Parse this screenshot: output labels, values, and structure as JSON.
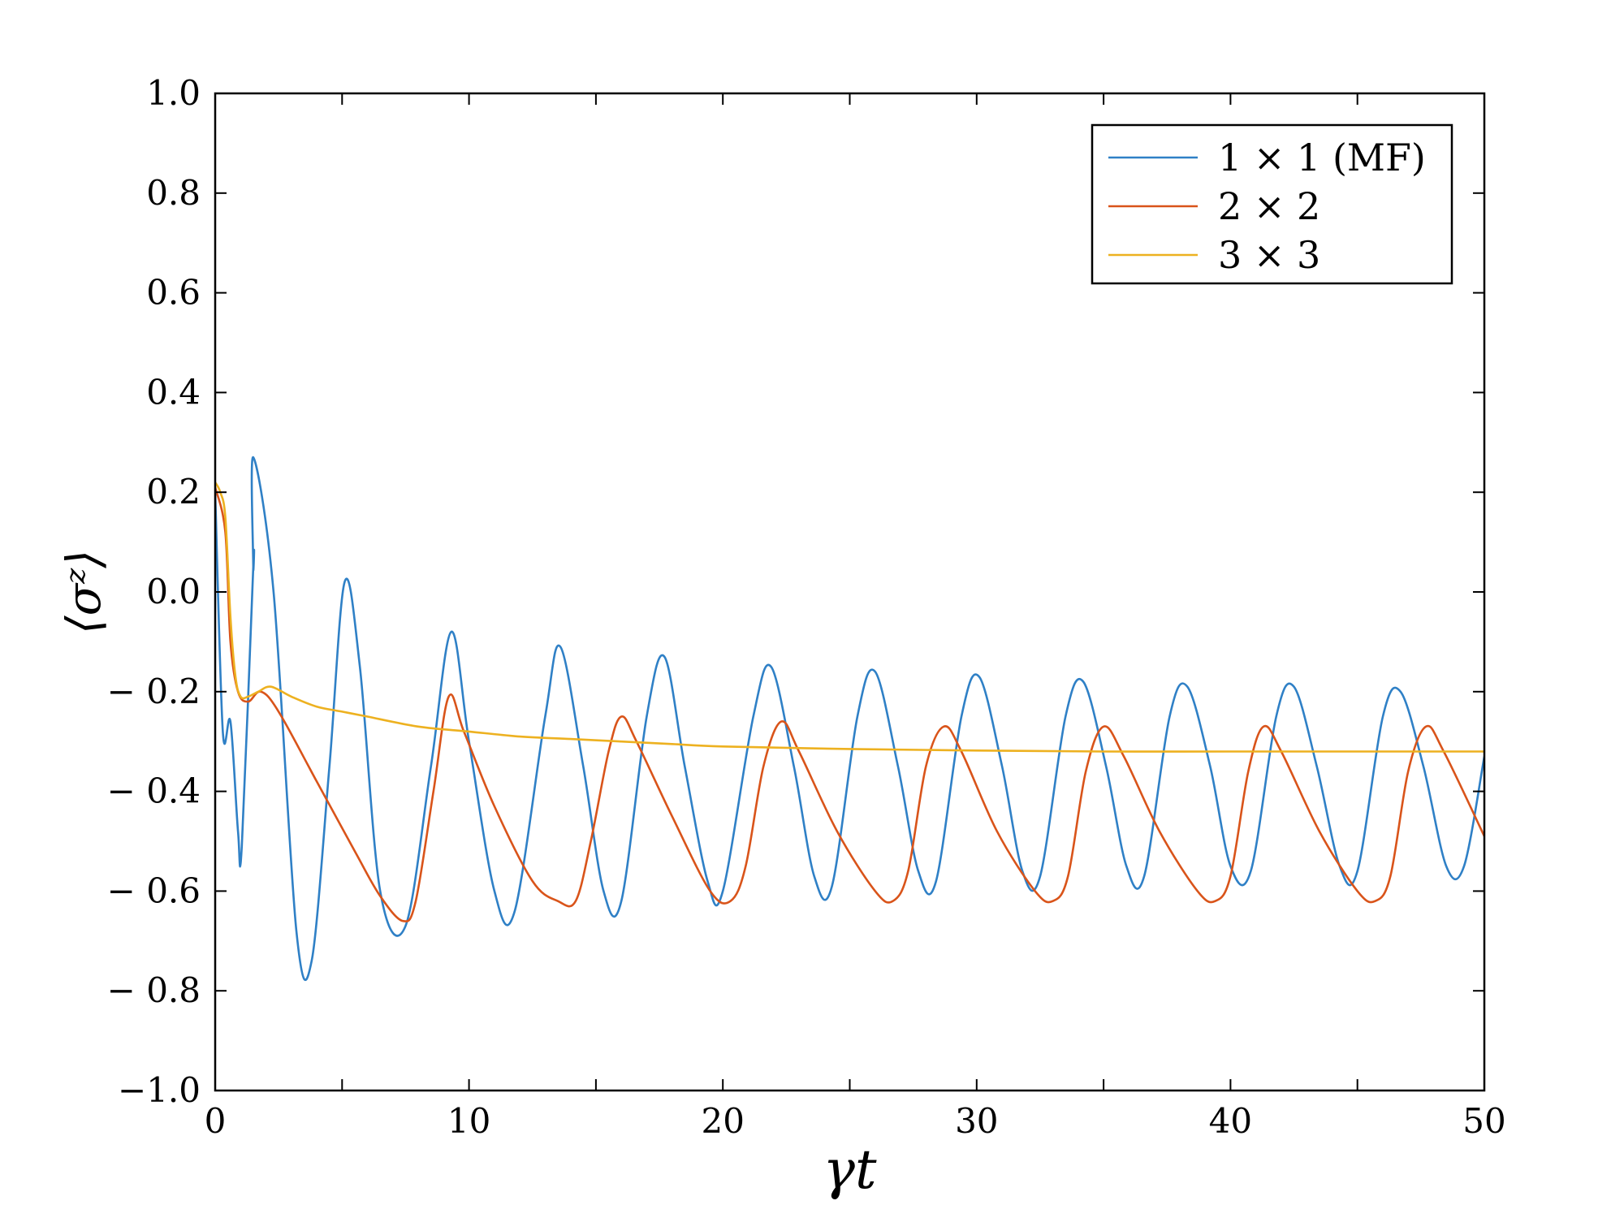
{
  "chart_data": {
    "type": "line",
    "xlabel": "γt",
    "ylabel": "⟨σᶻ⟩",
    "xlim": [
      0,
      50
    ],
    "ylim": [
      -1.0,
      1.0
    ],
    "x_ticks": [
      0,
      10,
      20,
      30,
      40,
      50
    ],
    "x_tick_labels": [
      "0",
      "10",
      "20",
      "30",
      "40",
      "50"
    ],
    "y_ticks": [
      1.0,
      0.8,
      0.6,
      0.4,
      0.2,
      0.0,
      -0.2,
      -0.4,
      -0.6,
      -0.8,
      -1.0
    ],
    "y_tick_labels": [
      "1.0",
      "0.8",
      "0.6",
      "0.4",
      "0.2",
      "0.0",
      "− 0.2",
      "− 0.4",
      "− 0.6",
      "− 0.8",
      "−1.0"
    ],
    "grid": false,
    "legend_position": "top-right",
    "series": [
      {
        "name": "1 × 1 (MF)",
        "color": "#2f80c6",
        "points": [
          [
            0,
            0.2
          ],
          [
            0.3,
            -0.28
          ],
          [
            0.6,
            -0.26
          ],
          [
            0.9,
            -0.48
          ],
          [
            1.05,
            -0.51
          ],
          [
            1.5,
            0.05
          ],
          [
            1.5,
            0.05
          ],
          [
            1.5,
            0.27
          ],
          [
            2.3,
            0.0
          ],
          [
            3.2,
            -0.68
          ],
          [
            3.8,
            -0.74
          ],
          [
            4.5,
            -0.35
          ],
          [
            5.1,
            0.02
          ],
          [
            5.7,
            -0.15
          ],
          [
            6.5,
            -0.6
          ],
          [
            7.5,
            -0.67
          ],
          [
            8.5,
            -0.35
          ],
          [
            9.3,
            -0.08
          ],
          [
            10,
            -0.3
          ],
          [
            11,
            -0.6
          ],
          [
            11.8,
            -0.64
          ],
          [
            13,
            -0.25
          ],
          [
            13.6,
            -0.11
          ],
          [
            14.5,
            -0.35
          ],
          [
            15.3,
            -0.6
          ],
          [
            16,
            -0.62
          ],
          [
            17,
            -0.25
          ],
          [
            17.7,
            -0.13
          ],
          [
            18.5,
            -0.35
          ],
          [
            19.4,
            -0.58
          ],
          [
            20,
            -0.6
          ],
          [
            21.2,
            -0.25
          ],
          [
            21.9,
            -0.15
          ],
          [
            22.8,
            -0.35
          ],
          [
            23.6,
            -0.57
          ],
          [
            24.3,
            -0.59
          ],
          [
            25.3,
            -0.25
          ],
          [
            26,
            -0.16
          ],
          [
            26.9,
            -0.35
          ],
          [
            27.7,
            -0.56
          ],
          [
            28.4,
            -0.58
          ],
          [
            29.4,
            -0.25
          ],
          [
            30.1,
            -0.17
          ],
          [
            31,
            -0.35
          ],
          [
            31.8,
            -0.56
          ],
          [
            32.5,
            -0.57
          ],
          [
            33.5,
            -0.25
          ],
          [
            34.2,
            -0.18
          ],
          [
            35.1,
            -0.35
          ],
          [
            35.9,
            -0.55
          ],
          [
            36.6,
            -0.57
          ],
          [
            37.6,
            -0.25
          ],
          [
            38.3,
            -0.19
          ],
          [
            39.2,
            -0.35
          ],
          [
            40,
            -0.55
          ],
          [
            40.8,
            -0.56
          ],
          [
            41.8,
            -0.25
          ],
          [
            42.5,
            -0.19
          ],
          [
            43.4,
            -0.35
          ],
          [
            44.3,
            -0.55
          ],
          [
            45,
            -0.56
          ],
          [
            46,
            -0.25
          ],
          [
            46.7,
            -0.2
          ],
          [
            47.6,
            -0.35
          ],
          [
            48.5,
            -0.55
          ],
          [
            49.2,
            -0.55
          ],
          [
            50,
            -0.33
          ]
        ]
      },
      {
        "name": "2 × 2",
        "color": "#d9541a",
        "points": [
          [
            0,
            0.21
          ],
          [
            0.4,
            0.12
          ],
          [
            0.6,
            -0.1
          ],
          [
            0.9,
            -0.2
          ],
          [
            1.3,
            -0.22
          ],
          [
            1.8,
            -0.2
          ],
          [
            2.5,
            -0.24
          ],
          [
            4,
            -0.38
          ],
          [
            5.5,
            -0.52
          ],
          [
            6.5,
            -0.61
          ],
          [
            7.4,
            -0.66
          ],
          [
            7.9,
            -0.62
          ],
          [
            8.6,
            -0.4
          ],
          [
            9.2,
            -0.21
          ],
          [
            9.8,
            -0.28
          ],
          [
            11,
            -0.43
          ],
          [
            12.5,
            -0.58
          ],
          [
            13.5,
            -0.62
          ],
          [
            14.2,
            -0.62
          ],
          [
            14.8,
            -0.5
          ],
          [
            15.5,
            -0.32
          ],
          [
            16,
            -0.25
          ],
          [
            16.6,
            -0.3
          ],
          [
            18,
            -0.45
          ],
          [
            19.5,
            -0.6
          ],
          [
            20.3,
            -0.62
          ],
          [
            20.9,
            -0.55
          ],
          [
            21.6,
            -0.35
          ],
          [
            22.3,
            -0.26
          ],
          [
            23,
            -0.32
          ],
          [
            24.5,
            -0.48
          ],
          [
            26,
            -0.6
          ],
          [
            26.7,
            -0.62
          ],
          [
            27.3,
            -0.56
          ],
          [
            28,
            -0.35
          ],
          [
            28.7,
            -0.27
          ],
          [
            29.4,
            -0.32
          ],
          [
            30.8,
            -0.48
          ],
          [
            32.3,
            -0.6
          ],
          [
            33,
            -0.62
          ],
          [
            33.6,
            -0.57
          ],
          [
            34.3,
            -0.36
          ],
          [
            35,
            -0.27
          ],
          [
            35.8,
            -0.33
          ],
          [
            37.2,
            -0.48
          ],
          [
            38.7,
            -0.6
          ],
          [
            39.4,
            -0.62
          ],
          [
            40,
            -0.57
          ],
          [
            40.7,
            -0.36
          ],
          [
            41.3,
            -0.27
          ],
          [
            42,
            -0.32
          ],
          [
            43.5,
            -0.48
          ],
          [
            45,
            -0.6
          ],
          [
            45.7,
            -0.62
          ],
          [
            46.3,
            -0.57
          ],
          [
            47,
            -0.36
          ],
          [
            47.7,
            -0.27
          ],
          [
            48.4,
            -0.32
          ],
          [
            50,
            -0.49
          ]
        ]
      },
      {
        "name": "3 × 3",
        "color": "#edb120",
        "points": [
          [
            0,
            0.22
          ],
          [
            0.2,
            0.2
          ],
          [
            0.4,
            0.15
          ],
          [
            0.6,
            -0.05
          ],
          [
            0.8,
            -0.17
          ],
          [
            1.0,
            -0.21
          ],
          [
            1.3,
            -0.21
          ],
          [
            1.7,
            -0.2
          ],
          [
            2.2,
            -0.19
          ],
          [
            3,
            -0.21
          ],
          [
            4,
            -0.23
          ],
          [
            5,
            -0.24
          ],
          [
            6,
            -0.25
          ],
          [
            8,
            -0.27
          ],
          [
            10,
            -0.28
          ],
          [
            12,
            -0.29
          ],
          [
            14,
            -0.295
          ],
          [
            16,
            -0.3
          ],
          [
            18,
            -0.305
          ],
          [
            20,
            -0.31
          ],
          [
            25,
            -0.315
          ],
          [
            30,
            -0.318
          ],
          [
            35,
            -0.32
          ],
          [
            40,
            -0.32
          ],
          [
            45,
            -0.32
          ],
          [
            50,
            -0.32
          ]
        ]
      }
    ]
  }
}
